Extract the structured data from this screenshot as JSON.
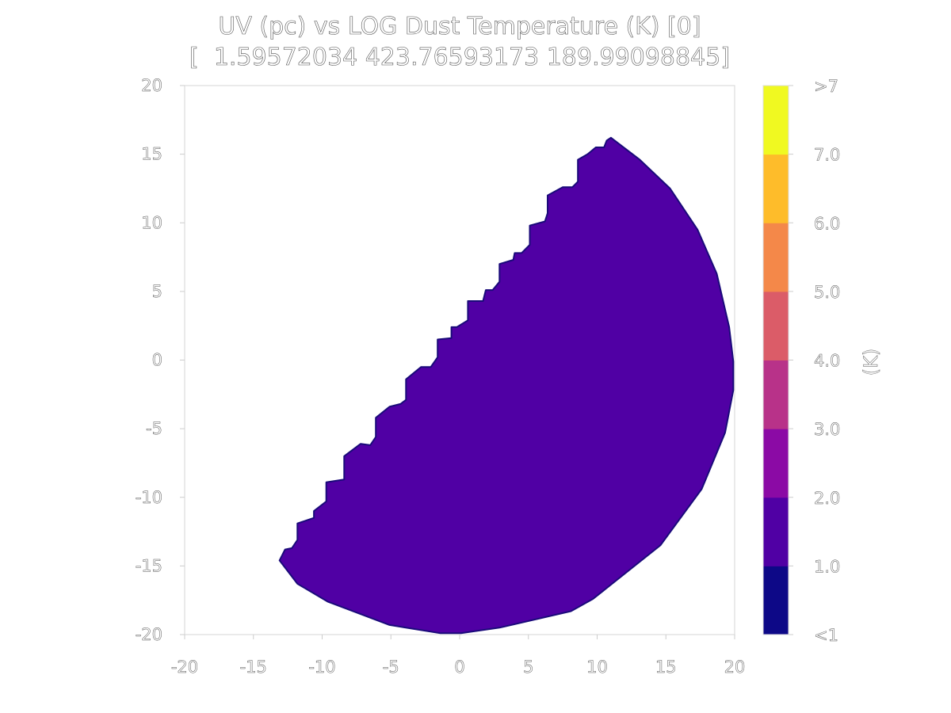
{
  "chart_data": {
    "type": "heatmap",
    "title_line1": "UV (pc) vs LOG Dust Temperature (K) [0]",
    "title_line2": "[  1.59572034 423.76593173 189.99098845]",
    "xlim": [
      -20,
      20
    ],
    "ylim": [
      -20,
      20
    ],
    "x_ticks": [
      -20,
      -15,
      -10,
      -5,
      0,
      5,
      10,
      15,
      20
    ],
    "y_ticks": [
      -20,
      -15,
      -10,
      -5,
      0,
      5,
      10,
      15,
      20
    ],
    "x_tick_labels": [
      "-20",
      "-15",
      "-10",
      "-5",
      "0",
      "5",
      "10",
      "15",
      "20"
    ],
    "y_tick_labels": [
      "-20",
      "-15",
      "-10",
      "-5",
      "0",
      "5",
      "10",
      "15",
      "20"
    ],
    "region": {
      "value_bin": "1.0-2.0",
      "color": "#5000a4",
      "edge_color": "#1a0a7a",
      "boundary": [
        [
          -13.1,
          -14.6
        ],
        [
          -12.7,
          -13.8
        ],
        [
          -12.2,
          -13.7
        ],
        [
          -11.8,
          -13.1
        ],
        [
          -11.8,
          -11.9
        ],
        [
          -10.6,
          -11.5
        ],
        [
          -10.6,
          -11.0
        ],
        [
          -9.7,
          -10.3
        ],
        [
          -9.7,
          -8.9
        ],
        [
          -8.4,
          -8.7
        ],
        [
          -8.4,
          -7.0
        ],
        [
          -7.2,
          -6.1
        ],
        [
          -6.5,
          -6.2
        ],
        [
          -6.1,
          -5.6
        ],
        [
          -6.1,
          -4.2
        ],
        [
          -5.1,
          -3.4
        ],
        [
          -4.3,
          -3.2
        ],
        [
          -3.9,
          -2.9
        ],
        [
          -3.9,
          -1.4
        ],
        [
          -2.8,
          -0.5
        ],
        [
          -2.1,
          -0.5
        ],
        [
          -1.6,
          0.2
        ],
        [
          -1.6,
          1.5
        ],
        [
          -0.6,
          1.6
        ],
        [
          -0.6,
          2.4
        ],
        [
          -0.2,
          2.4
        ],
        [
          0.6,
          2.9
        ],
        [
          0.6,
          4.3
        ],
        [
          1.7,
          4.3
        ],
        [
          1.9,
          5.1
        ],
        [
          2.4,
          5.1
        ],
        [
          2.9,
          5.7
        ],
        [
          2.9,
          7.0
        ],
        [
          3.9,
          7.3
        ],
        [
          4.0,
          7.8
        ],
        [
          4.5,
          7.8
        ],
        [
          5.1,
          8.4
        ],
        [
          5.1,
          9.8
        ],
        [
          6.2,
          10.1
        ],
        [
          6.4,
          10.7
        ],
        [
          6.4,
          12.0
        ],
        [
          7.5,
          12.6
        ],
        [
          8.2,
          12.6
        ],
        [
          8.6,
          13.0
        ],
        [
          8.6,
          14.6
        ],
        [
          9.3,
          15.0
        ],
        [
          9.9,
          15.5
        ],
        [
          10.5,
          15.5
        ],
        [
          10.7,
          16.0
        ],
        [
          11.0,
          16.2
        ],
        [
          13.1,
          14.6
        ],
        [
          15.3,
          12.5
        ],
        [
          17.3,
          9.5
        ],
        [
          18.7,
          6.3
        ],
        [
          19.6,
          2.4
        ],
        [
          19.9,
          -0.1
        ],
        [
          19.9,
          -2.2
        ],
        [
          19.3,
          -5.3
        ],
        [
          17.6,
          -9.4
        ],
        [
          14.6,
          -13.5
        ],
        [
          9.7,
          -17.4
        ],
        [
          8.1,
          -18.3
        ],
        [
          2.9,
          -19.5
        ],
        [
          0.1,
          -19.9
        ],
        [
          -1.4,
          -19.9
        ],
        [
          -5.1,
          -19.3
        ],
        [
          -9.6,
          -17.6
        ],
        [
          -11.8,
          -16.3
        ],
        [
          -13.1,
          -14.6
        ]
      ]
    },
    "colorbar": {
      "label": "(K)",
      "bins": [
        {
          "color": "#0d0887"
        },
        {
          "color": "#5000a4"
        },
        {
          "color": "#8b0aa5"
        },
        {
          "color": "#b83289"
        },
        {
          "color": "#db5c68"
        },
        {
          "color": "#f48849"
        },
        {
          "color": "#febc2a"
        },
        {
          "color": "#f0f921"
        }
      ],
      "tick_labels": [
        "<1",
        "1.0",
        "2.0",
        "3.0",
        "4.0",
        "5.0",
        "6.0",
        "7.0",
        ">7"
      ]
    }
  }
}
